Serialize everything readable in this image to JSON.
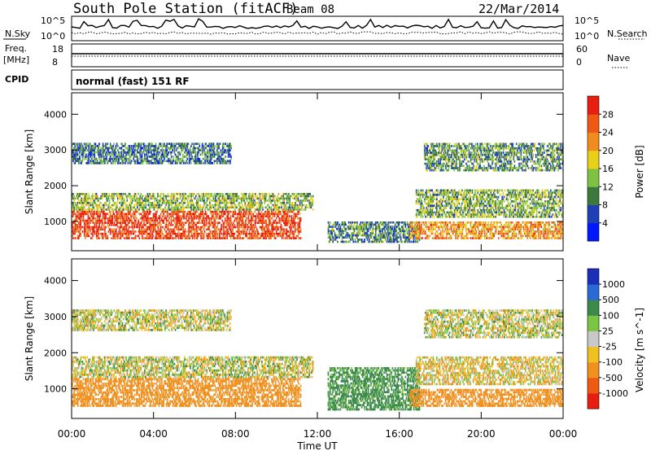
{
  "header": {
    "station": "South Pole Station (fitACF)",
    "beam": "Beam 08",
    "date": "22/Mar/2014"
  },
  "top_panels": {
    "nsky_label": "N.Sky",
    "nsearch_label": "N.Search",
    "nsky_ticks": [
      "10^5",
      "10^0"
    ],
    "nsearch_ticks": [
      "10^5",
      "10^0"
    ],
    "freq_label_1": "Freq.",
    "freq_label_2": "[MHz]",
    "freq_ticks": [
      "18",
      "8"
    ],
    "nave_label": "Nave",
    "nave_ticks": [
      "60",
      "0"
    ],
    "cpid_label": "CPID",
    "cpid_value": "normal (fast) 151 RF"
  },
  "chart_data": [
    {
      "type": "heatmap",
      "title": "",
      "xlabel": "Time UT",
      "ylabel": "Slant Range [km]",
      "x_ticks": [
        "00:00",
        "04:00",
        "08:00",
        "12:00",
        "16:00",
        "20:00",
        "00:00"
      ],
      "y_ticks": [
        1000,
        2000,
        3000,
        4000
      ],
      "xlim_hours": [
        0,
        24
      ],
      "ylim_km": [
        180,
        4600
      ],
      "colorbar": {
        "label": "Power [dB]",
        "ticks": [
          "4",
          "8",
          "12",
          "16",
          "20",
          "24",
          "28"
        ],
        "colors": [
          "#0018ff",
          "#1f3fb6",
          "#3b7a3a",
          "#7fc241",
          "#e8d016",
          "#f08c1e",
          "#ee5a14",
          "#e81e10"
        ]
      },
      "echo_bands": [
        {
          "t0": 0.0,
          "t1": 11.2,
          "r0": 500,
          "r1": 1300,
          "value": 28
        },
        {
          "t0": 0.0,
          "t1": 11.8,
          "r0": 1300,
          "r1": 1800,
          "value": 14
        },
        {
          "t0": 0.0,
          "t1": 7.8,
          "r0": 2600,
          "r1": 3200,
          "value": 9
        },
        {
          "t0": 12.5,
          "t1": 17.0,
          "r0": 400,
          "r1": 1000,
          "value": 10
        },
        {
          "t0": 16.5,
          "t1": 24.0,
          "r0": 500,
          "r1": 1000,
          "value": 22
        },
        {
          "t0": 16.8,
          "t1": 24.0,
          "r0": 1100,
          "r1": 1900,
          "value": 13
        },
        {
          "t0": 17.2,
          "t1": 24.0,
          "r0": 2400,
          "r1": 3200,
          "value": 11
        }
      ]
    },
    {
      "type": "heatmap",
      "title": "",
      "xlabel": "Time UT",
      "ylabel": "Slant Range [km]",
      "x_ticks": [
        "00:00",
        "04:00",
        "08:00",
        "12:00",
        "16:00",
        "20:00",
        "00:00"
      ],
      "y_ticks": [
        1000,
        2000,
        3000,
        4000
      ],
      "xlim_hours": [
        0,
        24
      ],
      "ylim_km": [
        180,
        4600
      ],
      "colorbar": {
        "label": "Velocity [m s^-1]",
        "ticks": [
          "1000",
          "500",
          "100",
          "25",
          "-25",
          "-100",
          "-500",
          "-1000"
        ],
        "colors": [
          "#1a2fb8",
          "#2a6ad6",
          "#3b8a4a",
          "#7cc443",
          "#c8c8c8",
          "#f0c020",
          "#f0901e",
          "#ee5a14",
          "#e81e10"
        ]
      },
      "echo_bands": [
        {
          "t0": 0.0,
          "t1": 11.2,
          "r0": 500,
          "r1": 1300,
          "value": -300
        },
        {
          "t0": 0.0,
          "t1": 11.8,
          "r0": 1300,
          "r1": 1900,
          "value": 0
        },
        {
          "t0": 0.0,
          "t1": 7.8,
          "r0": 2600,
          "r1": 3200,
          "value": 0
        },
        {
          "t0": 12.5,
          "t1": 17.0,
          "r0": 400,
          "r1": 1600,
          "value": 200
        },
        {
          "t0": 16.5,
          "t1": 24.0,
          "r0": 500,
          "r1": 1000,
          "value": -300
        },
        {
          "t0": 16.8,
          "t1": 24.0,
          "r0": 1100,
          "r1": 1900,
          "value": -50
        },
        {
          "t0": 17.2,
          "t1": 24.0,
          "r0": 2400,
          "r1": 3200,
          "value": 0
        }
      ]
    }
  ]
}
